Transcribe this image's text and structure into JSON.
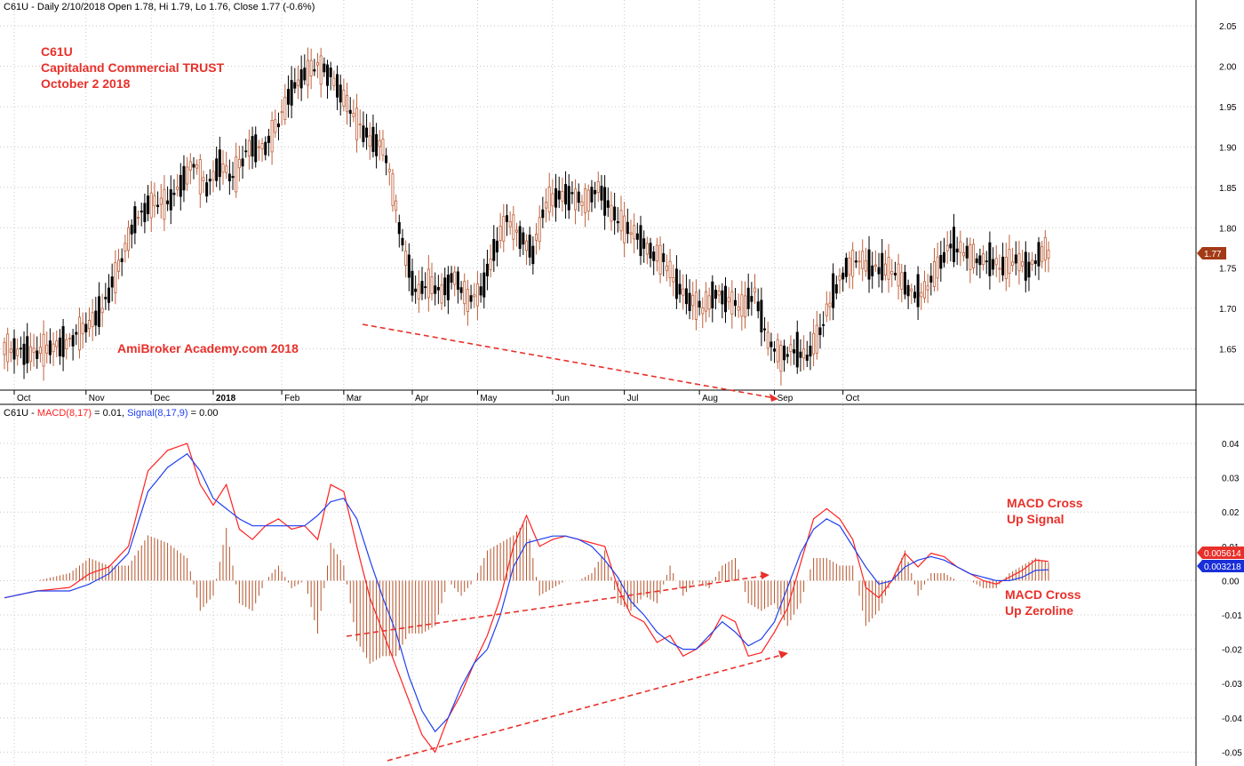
{
  "price_pane": {
    "header": "C61U - Daily 2/10/2018 Open 1.78, Hi 1.79, Lo 1.76, Close 1.77 (-0.6%)",
    "annotations": [
      "C61U",
      "Capitaland Commercial TRUST",
      "October 2 2018"
    ],
    "watermark": "AmiBroker Academy.com 2018",
    "last_price_label": "1.77"
  },
  "macd_pane": {
    "header_prefix": "C61U - ",
    "header_macd": "MACD(8,17)",
    "header_macd_val": " = 0.01, ",
    "header_signal": "Signal(8,17,9)",
    "header_signal_val": " = 0.00",
    "note_signal": [
      "MACD Cross",
      "Up Signal"
    ],
    "note_zero": [
      "MACD Cross",
      "Up Zeroline"
    ],
    "macd_last_label": "0.005614",
    "signal_last_label": "0.003218"
  },
  "colors": {
    "up_candle": "#c0603a",
    "down_candle": "#000000",
    "macd_line": "#ff2020",
    "signal_line": "#1f3ff0",
    "histogram": "#b5532a",
    "annotation": "#e8302a",
    "price_badge": "#a33a16",
    "signal_badge": "#1a2fd8",
    "grid": "#c8c8c8"
  },
  "chart_data": [
    {
      "type": "candlestick",
      "ylim": [
        1.6,
        2.06
      ],
      "y_ticks": [
        "1.65",
        "1.70",
        "1.75",
        "1.80",
        "1.85",
        "1.90",
        "1.95",
        "2.00",
        "2.05"
      ],
      "x_ticks": [
        "Oct",
        "Nov",
        "Dec",
        "2018",
        "Feb",
        "Mar",
        "Apr",
        "May",
        "Jun",
        "Jul",
        "Aug",
        "Sep",
        "Oct"
      ],
      "close_anchors": [
        [
          0,
          1.65
        ],
        [
          10,
          1.645
        ],
        [
          20,
          1.66
        ],
        [
          26,
          1.68
        ],
        [
          30,
          1.7
        ],
        [
          35,
          1.75
        ],
        [
          40,
          1.81
        ],
        [
          45,
          1.83
        ],
        [
          50,
          1.83
        ],
        [
          55,
          1.86
        ],
        [
          58,
          1.88
        ],
        [
          62,
          1.85
        ],
        [
          66,
          1.88
        ],
        [
          70,
          1.86
        ],
        [
          75,
          1.9
        ],
        [
          80,
          1.9
        ],
        [
          84,
          1.93
        ],
        [
          88,
          1.97
        ],
        [
          92,
          1.99
        ],
        [
          96,
          2.0
        ],
        [
          100,
          1.99
        ],
        [
          104,
          1.96
        ],
        [
          108,
          1.93
        ],
        [
          112,
          1.91
        ],
        [
          116,
          1.9
        ],
        [
          118,
          1.87
        ],
        [
          122,
          1.78
        ],
        [
          126,
          1.72
        ],
        [
          130,
          1.73
        ],
        [
          134,
          1.72
        ],
        [
          138,
          1.74
        ],
        [
          142,
          1.71
        ],
        [
          146,
          1.72
        ],
        [
          150,
          1.77
        ],
        [
          154,
          1.81
        ],
        [
          158,
          1.79
        ],
        [
          162,
          1.77
        ],
        [
          166,
          1.83
        ],
        [
          170,
          1.84
        ],
        [
          174,
          1.84
        ],
        [
          178,
          1.83
        ],
        [
          182,
          1.85
        ],
        [
          186,
          1.82
        ],
        [
          190,
          1.8
        ],
        [
          194,
          1.79
        ],
        [
          198,
          1.77
        ],
        [
          202,
          1.76
        ],
        [
          206,
          1.73
        ],
        [
          210,
          1.71
        ],
        [
          214,
          1.7
        ],
        [
          218,
          1.72
        ],
        [
          222,
          1.71
        ],
        [
          226,
          1.7
        ],
        [
          230,
          1.72
        ],
        [
          234,
          1.66
        ],
        [
          238,
          1.64
        ],
        [
          242,
          1.65
        ],
        [
          246,
          1.64
        ],
        [
          250,
          1.67
        ],
        [
          254,
          1.72
        ],
        [
          258,
          1.75
        ],
        [
          262,
          1.76
        ],
        [
          266,
          1.75
        ],
        [
          270,
          1.75
        ],
        [
          274,
          1.74
        ],
        [
          278,
          1.72
        ],
        [
          282,
          1.72
        ],
        [
          286,
          1.75
        ],
        [
          290,
          1.78
        ],
        [
          294,
          1.77
        ],
        [
          298,
          1.76
        ],
        [
          302,
          1.76
        ],
        [
          306,
          1.75
        ],
        [
          310,
          1.76
        ],
        [
          314,
          1.75
        ],
        [
          318,
          1.77
        ],
        [
          320,
          1.77
        ]
      ],
      "candle_count": 321
    },
    {
      "type": "line",
      "ylim": [
        -0.053,
        0.047
      ],
      "y_ticks": [
        "-0.05",
        "-0.04",
        "-0.03",
        "-0.02",
        "-0.01",
        "0.00",
        "0.01",
        "0.02",
        "0.03",
        "0.04"
      ],
      "series": [
        {
          "name": "MACD(8,17)",
          "points": [
            [
              0,
              -0.005
            ],
            [
              10,
              -0.003
            ],
            [
              20,
              -0.002
            ],
            [
              26,
              0.002
            ],
            [
              32,
              0.004
            ],
            [
              38,
              0.01
            ],
            [
              44,
              0.032
            ],
            [
              50,
              0.038
            ],
            [
              56,
              0.04
            ],
            [
              60,
              0.028
            ],
            [
              64,
              0.022
            ],
            [
              68,
              0.028
            ],
            [
              72,
              0.015
            ],
            [
              76,
              0.012
            ],
            [
              80,
              0.016
            ],
            [
              84,
              0.018
            ],
            [
              88,
              0.015
            ],
            [
              92,
              0.016
            ],
            [
              96,
              0.012
            ],
            [
              100,
              0.028
            ],
            [
              104,
              0.026
            ],
            [
              108,
              0.01
            ],
            [
              112,
              -0.005
            ],
            [
              116,
              -0.015
            ],
            [
              120,
              -0.025
            ],
            [
              124,
              -0.035
            ],
            [
              128,
              -0.045
            ],
            [
              132,
              -0.05
            ],
            [
              136,
              -0.04
            ],
            [
              140,
              -0.033
            ],
            [
              144,
              -0.024
            ],
            [
              148,
              -0.016
            ],
            [
              152,
              -0.005
            ],
            [
              156,
              0.01
            ],
            [
              160,
              0.019
            ],
            [
              164,
              0.01
            ],
            [
              168,
              0.012
            ],
            [
              172,
              0.013
            ],
            [
              176,
              0.012
            ],
            [
              180,
              0.011
            ],
            [
              184,
              0.01
            ],
            [
              188,
              -0.002
            ],
            [
              192,
              -0.01
            ],
            [
              196,
              -0.012
            ],
            [
              200,
              -0.018
            ],
            [
              204,
              -0.016
            ],
            [
              208,
              -0.022
            ],
            [
              212,
              -0.02
            ],
            [
              216,
              -0.017
            ],
            [
              220,
              -0.01
            ],
            [
              224,
              -0.012
            ],
            [
              228,
              -0.022
            ],
            [
              232,
              -0.021
            ],
            [
              236,
              -0.015
            ],
            [
              240,
              -0.008
            ],
            [
              244,
              0.005
            ],
            [
              248,
              0.018
            ],
            [
              252,
              0.021
            ],
            [
              256,
              0.018
            ],
            [
              260,
              0.012
            ],
            [
              264,
              -0.002
            ],
            [
              268,
              -0.005
            ],
            [
              272,
              0.0
            ],
            [
              276,
              0.008
            ],
            [
              280,
              0.004
            ],
            [
              284,
              0.008
            ],
            [
              288,
              0.007
            ],
            [
              292,
              0.004
            ],
            [
              296,
              0.002
            ],
            [
              300,
              0.0
            ],
            [
              304,
              -0.001
            ],
            [
              308,
              0.001
            ],
            [
              312,
              0.003
            ],
            [
              316,
              0.006
            ],
            [
              320,
              0.0056
            ]
          ]
        },
        {
          "name": "Signal(8,17,9)",
          "points": [
            [
              0,
              -0.005
            ],
            [
              10,
              -0.003
            ],
            [
              20,
              -0.003
            ],
            [
              26,
              -0.001
            ],
            [
              32,
              0.002
            ],
            [
              38,
              0.008
            ],
            [
              44,
              0.026
            ],
            [
              50,
              0.033
            ],
            [
              56,
              0.037
            ],
            [
              60,
              0.032
            ],
            [
              64,
              0.024
            ],
            [
              68,
              0.021
            ],
            [
              72,
              0.018
            ],
            [
              76,
              0.016
            ],
            [
              80,
              0.016
            ],
            [
              84,
              0.016
            ],
            [
              88,
              0.016
            ],
            [
              92,
              0.016
            ],
            [
              96,
              0.019
            ],
            [
              100,
              0.023
            ],
            [
              104,
              0.024
            ],
            [
              108,
              0.018
            ],
            [
              112,
              0.006
            ],
            [
              116,
              -0.005
            ],
            [
              120,
              -0.015
            ],
            [
              124,
              -0.028
            ],
            [
              128,
              -0.038
            ],
            [
              132,
              -0.044
            ],
            [
              136,
              -0.04
            ],
            [
              140,
              -0.031
            ],
            [
              144,
              -0.024
            ],
            [
              148,
              -0.02
            ],
            [
              152,
              -0.01
            ],
            [
              156,
              0.004
            ],
            [
              160,
              0.011
            ],
            [
              164,
              0.012
            ],
            [
              168,
              0.013
            ],
            [
              172,
              0.013
            ],
            [
              176,
              0.012
            ],
            [
              180,
              0.01
            ],
            [
              184,
              0.006
            ],
            [
              188,
              0.001
            ],
            [
              192,
              -0.006
            ],
            [
              196,
              -0.01
            ],
            [
              200,
              -0.015
            ],
            [
              204,
              -0.018
            ],
            [
              208,
              -0.02
            ],
            [
              212,
              -0.02
            ],
            [
              216,
              -0.016
            ],
            [
              220,
              -0.012
            ],
            [
              224,
              -0.015
            ],
            [
              228,
              -0.019
            ],
            [
              232,
              -0.017
            ],
            [
              236,
              -0.012
            ],
            [
              240,
              -0.002
            ],
            [
              244,
              0.008
            ],
            [
              248,
              0.015
            ],
            [
              252,
              0.018
            ],
            [
              256,
              0.016
            ],
            [
              260,
              0.01
            ],
            [
              264,
              0.004
            ],
            [
              268,
              -0.001
            ],
            [
              272,
              0.0
            ],
            [
              276,
              0.004
            ],
            [
              280,
              0.006
            ],
            [
              284,
              0.007
            ],
            [
              288,
              0.006
            ],
            [
              292,
              0.004
            ],
            [
              296,
              0.002
            ],
            [
              300,
              0.001
            ],
            [
              304,
              0.0
            ],
            [
              308,
              0.0
            ],
            [
              312,
              0.001
            ],
            [
              316,
              0.003
            ],
            [
              320,
              0.0032
            ]
          ]
        }
      ]
    }
  ]
}
